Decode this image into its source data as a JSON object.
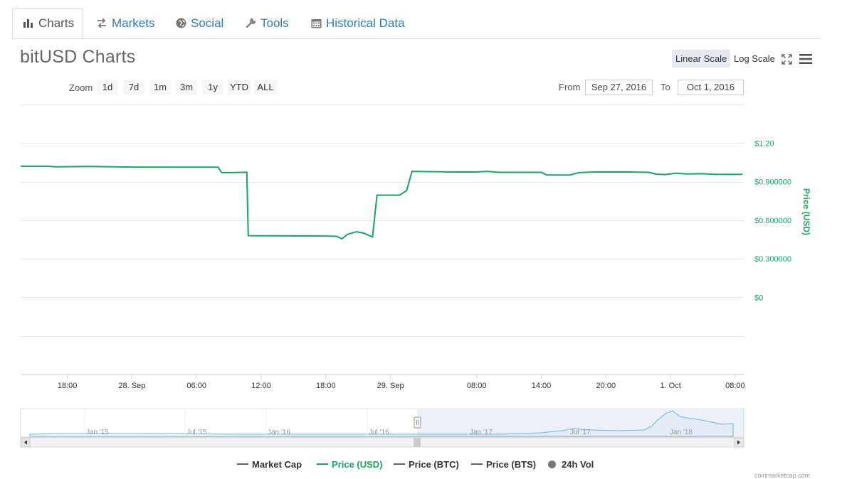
{
  "tabs": [
    {
      "label": "Charts",
      "icon": "bar-chart-icon",
      "active": true
    },
    {
      "label": "Markets",
      "icon": "exchange-icon",
      "active": false
    },
    {
      "label": "Social",
      "icon": "globe-icon",
      "active": false
    },
    {
      "label": "Tools",
      "icon": "wrench-icon",
      "active": false
    },
    {
      "label": "Historical Data",
      "icon": "calendar-icon",
      "active": false
    }
  ],
  "header": {
    "title": "bitUSD Charts",
    "linear_scale": "Linear Scale",
    "log_scale": "Log Scale",
    "selected_scale": "Linear Scale"
  },
  "range": {
    "zoom_label": "Zoom",
    "buttons": [
      "1d",
      "7d",
      "1m",
      "3m",
      "1y",
      "YTD",
      "ALL"
    ],
    "from_label": "From",
    "from_value": "Sep 27, 2016",
    "to_label": "To",
    "to_value": "Oct 1, 2016"
  },
  "colors": {
    "price_usd": "#1aa364",
    "navigator": "#75b2e0",
    "legend_grey": "#666666",
    "selected_scale_bg": "#e6e9f2"
  },
  "legend": [
    {
      "label": "Market Cap",
      "type": "line",
      "color": "#666666",
      "active": false
    },
    {
      "label": "Price (USD)",
      "type": "line",
      "color": "#1aa364",
      "active": true
    },
    {
      "label": "Price (BTC)",
      "type": "line",
      "color": "#666666",
      "active": false
    },
    {
      "label": "Price (BTS)",
      "type": "line",
      "color": "#666666",
      "active": false
    },
    {
      "label": "24h Vol",
      "type": "dot",
      "color": "#777777",
      "active": false
    }
  ],
  "credit": "coinmarketcap.com",
  "chart_data": {
    "type": "line",
    "title": "bitUSD Charts",
    "ylabel": "Price (USD)",
    "y_ticks": [
      "$0",
      "$0.300000",
      "$0.600000",
      "$0.900000",
      "$1.20"
    ],
    "ylim": [
      -0.6,
      1.5
    ],
    "x_tick_labels": [
      "18:00",
      "28. Sep",
      "06:00",
      "12:00",
      "18:00",
      "29. Sep",
      "08:00",
      "14:00",
      "20:00",
      "1. Oct",
      "08:00"
    ],
    "series": [
      {
        "name": "Price (USD)",
        "points": [
          [
            "2016-09-27 13:40",
            1.02
          ],
          [
            "2016-09-27 16:00",
            1.02
          ],
          [
            "2016-09-27 17:00",
            1.015
          ],
          [
            "2016-09-27 20:00",
            1.018
          ],
          [
            "2016-09-28 00:00",
            1.013
          ],
          [
            "2016-09-28 06:00",
            1.012
          ],
          [
            "2016-09-28 08:00",
            1.012
          ],
          [
            "2016-09-28 08:20",
            0.97
          ],
          [
            "2016-09-28 09:20",
            0.97
          ],
          [
            "2016-09-28 10:40",
            0.973
          ],
          [
            "2016-09-28 10:48",
            0.48
          ],
          [
            "2016-09-28 14:00",
            0.478
          ],
          [
            "2016-09-28 18:00",
            0.477
          ],
          [
            "2016-09-28 19:00",
            0.475
          ],
          [
            "2016-09-28 19:30",
            0.455
          ],
          [
            "2016-09-28 20:00",
            0.49
          ],
          [
            "2016-09-28 20:50",
            0.51
          ],
          [
            "2016-09-28 21:30",
            0.5
          ],
          [
            "2016-09-28 22:20",
            0.47
          ],
          [
            "2016-09-28 22:45",
            0.795
          ],
          [
            "2016-09-29 00:50",
            0.795
          ],
          [
            "2016-09-29 01:30",
            0.83
          ],
          [
            "2016-09-29 02:00",
            0.98
          ],
          [
            "2016-09-29 06:00",
            0.975
          ],
          [
            "2016-09-29 08:00",
            0.975
          ],
          [
            "2016-09-29 09:00",
            0.98
          ],
          [
            "2016-09-29 10:00",
            0.972
          ],
          [
            "2016-09-29 14:00",
            0.972
          ],
          [
            "2016-09-29 14:30",
            0.952
          ],
          [
            "2016-09-29 16:40",
            0.952
          ],
          [
            "2016-09-29 17:30",
            0.97
          ],
          [
            "2016-09-29 19:00",
            0.975
          ],
          [
            "2016-09-29 22:00",
            0.975
          ],
          [
            "2016-09-30 00:00",
            0.972
          ],
          [
            "2016-09-30 00:40",
            0.958
          ],
          [
            "2016-09-30 01:30",
            0.955
          ],
          [
            "2016-09-30 02:30",
            0.965
          ],
          [
            "2016-09-30 03:30",
            0.96
          ],
          [
            "2016-09-30 05:00",
            0.962
          ],
          [
            "2016-09-30 06:00",
            0.957
          ],
          [
            "2016-09-30 08:00",
            0.956
          ],
          [
            "2016-09-30 08:40",
            0.957
          ]
        ]
      }
    ],
    "navigator": {
      "x_tick_labels": [
        "Jan '15",
        "Jul '15",
        "Jan '16",
        "Jul '16",
        "Jan '17",
        "Jul '17",
        "Jan '18"
      ]
    },
    "grid": true,
    "legend_position": "bottom"
  }
}
